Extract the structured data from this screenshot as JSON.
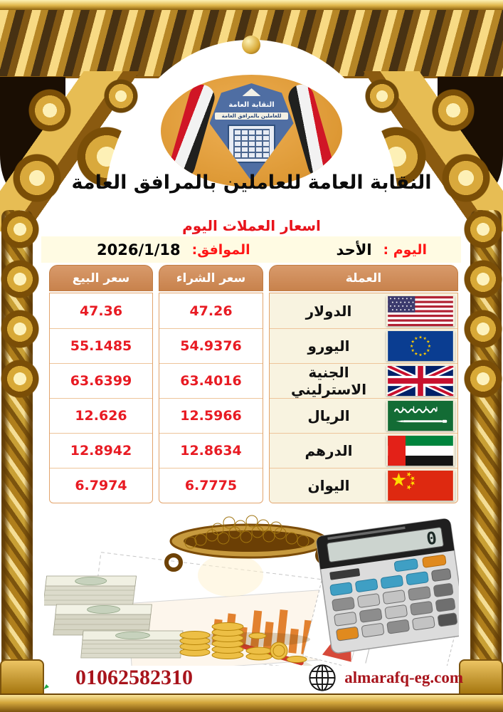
{
  "poster": {
    "org_title": "النقابة العامة للعاملين بالمرافق العامة",
    "subtitle": "اسعار العملات اليوم",
    "date_line": {
      "day_label": "اليوم :",
      "day_value": "الأحد",
      "date_label": "الموافق:",
      "date_value": "2026/1/18"
    }
  },
  "logo": {
    "emblem_top_text": "النقابة العامة",
    "emblem_bottom_text": "للعاملين بالمرافق العامة"
  },
  "rates_table": {
    "headers": {
      "currency": "العملة",
      "buy": "سعر الشراء",
      "sell": "سعر البيع"
    },
    "rows": [
      {
        "currency": "الدولار",
        "flag": "us-flag",
        "buy": "47.26",
        "sell": "47.36"
      },
      {
        "currency": "اليورو",
        "flag": "eu-flag",
        "buy": "54.9376",
        "sell": "55.1485"
      },
      {
        "currency": "الجنية الاسترليني",
        "flag": "uk-flag",
        "buy": "63.4016",
        "sell": "63.6399"
      },
      {
        "currency": "الريال",
        "flag": "saudi-flag",
        "buy": "12.5966",
        "sell": "12.626"
      },
      {
        "currency": "الدرهم",
        "flag": "uae-flag",
        "buy": "12.8634",
        "sell": "12.8942"
      },
      {
        "currency": "اليوان",
        "flag": "china-flag",
        "buy": "6.7775",
        "sell": "6.7974"
      }
    ]
  },
  "footer": {
    "phone": "01062582310",
    "website": "almarafq-eg.com"
  },
  "colors": {
    "header_cell": "#cf8d5f",
    "price_red": "#e81b23",
    "label_red": "#ff1616",
    "footer_red": "#a8141c",
    "gold": "#d4a137",
    "logo_oval": "#e19b3e",
    "table_border": "#e2a46d",
    "cream_cell": "#f8f3e0"
  }
}
